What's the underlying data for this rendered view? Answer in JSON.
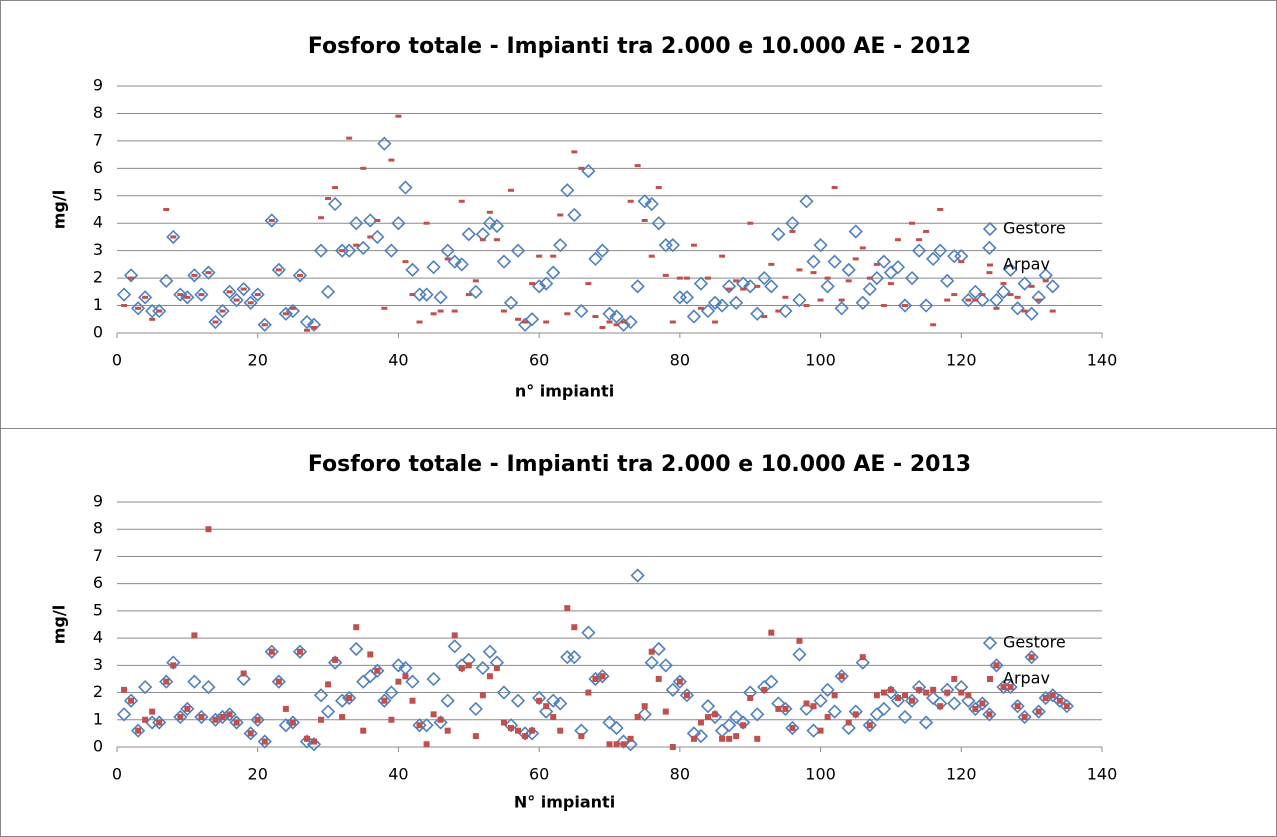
{
  "chart_data": [
    {
      "type": "scatter",
      "title": "Fosforo totale - Impianti tra 2.000 e 10.000 AE - 2012",
      "xlabel": "n° impianti",
      "ylabel": "mg/l",
      "x": [
        1,
        2,
        3,
        4,
        5,
        6,
        7,
        8,
        9,
        10,
        11,
        12,
        13,
        14,
        15,
        16,
        17,
        18,
        19,
        20,
        21,
        22,
        23,
        24,
        25,
        26,
        27,
        28,
        29,
        30,
        31,
        32,
        33,
        34,
        35,
        36,
        37,
        38,
        39,
        40,
        41,
        42,
        43,
        44,
        45,
        46,
        47,
        48,
        49,
        50,
        51,
        52,
        53,
        54,
        55,
        56,
        57,
        58,
        59,
        60,
        61,
        62,
        63,
        64,
        65,
        66,
        67,
        68,
        69,
        70,
        71,
        72,
        73,
        74,
        75,
        76,
        77,
        78,
        79,
        80,
        81,
        82,
        83,
        84,
        85,
        86,
        87,
        88,
        89,
        90,
        91,
        92,
        93,
        94,
        95,
        96,
        97,
        98,
        99,
        100,
        101,
        102,
        103,
        104,
        105,
        106,
        107,
        108,
        109,
        110,
        111,
        112,
        113,
        114,
        115,
        116,
        117,
        118,
        119,
        120,
        121,
        122,
        123,
        124,
        125,
        126,
        127,
        128,
        129,
        130,
        131,
        132,
        133
      ],
      "series": [
        {
          "name": "Gestore",
          "color": "#4f81bd",
          "marker": "diamond",
          "values": [
            1.4,
            2.1,
            0.9,
            1.3,
            0.8,
            0.8,
            1.9,
            3.5,
            1.4,
            1.3,
            2.1,
            1.4,
            2.2,
            0.4,
            0.8,
            1.5,
            1.2,
            1.6,
            1.1,
            1.4,
            0.3,
            4.1,
            2.3,
            0.7,
            0.8,
            2.1,
            0.4,
            0.3,
            3.0,
            1.5,
            4.7,
            3.0,
            3.0,
            4.0,
            3.1,
            4.1,
            3.5,
            6.9,
            3.0,
            4.0,
            5.3,
            2.3,
            1.4,
            1.4,
            2.4,
            1.3,
            3.0,
            2.6,
            2.5,
            3.6,
            1.5,
            3.6,
            4.0,
            3.9,
            2.6,
            1.1,
            3.0,
            0.3,
            0.5,
            1.7,
            1.8,
            2.2,
            3.2,
            5.2,
            4.3,
            0.8,
            5.9,
            2.7,
            3.0,
            0.7,
            0.6,
            0.3,
            0.4,
            1.7,
            4.8,
            4.7,
            4.0,
            3.2,
            3.2,
            1.3,
            1.3,
            0.6,
            1.8,
            0.8,
            1.1,
            1.0,
            1.7,
            1.1,
            1.8,
            1.7,
            0.7,
            2.0,
            1.7,
            3.6,
            0.8,
            4.0,
            1.2,
            4.8,
            2.6,
            3.2,
            1.7,
            2.6,
            0.9,
            2.3,
            3.7,
            1.1,
            1.6,
            2.0,
            2.6,
            2.2,
            2.4,
            1.0,
            2.0,
            3.0,
            1.0,
            2.7,
            3.0,
            1.9,
            2.8,
            2.8,
            1.2,
            1.5,
            1.2,
            3.1,
            1.2,
            1.5,
            2.3,
            0.9,
            1.8,
            0.7,
            1.3,
            2.1,
            1.7
          ]
        },
        {
          "name": "Arpav",
          "color": "#c0504d",
          "marker": "dash",
          "values": [
            1.0,
            2.0,
            0.9,
            1.3,
            0.5,
            0.8,
            4.5,
            3.5,
            1.4,
            1.3,
            2.1,
            1.4,
            2.2,
            0.4,
            0.8,
            1.5,
            1.2,
            1.6,
            1.1,
            1.4,
            0.3,
            4.1,
            2.3,
            0.7,
            0.9,
            2.1,
            0.1,
            0.2,
            4.2,
            4.9,
            5.3,
            3.0,
            7.1,
            3.2,
            6.0,
            3.5,
            4.1,
            0.9,
            6.3,
            7.9,
            2.6,
            1.4,
            0.4,
            4.0,
            0.7,
            0.8,
            2.7,
            0.8,
            4.8,
            1.4,
            1.9,
            3.4,
            4.4,
            3.4,
            0.8,
            5.2,
            0.5,
            0.4,
            1.8,
            2.8,
            0.4,
            2.8,
            4.3,
            0.7,
            6.6,
            6.0,
            1.8,
            0.6,
            0.2,
            0.4,
            0.3,
            0.4,
            4.8,
            6.1,
            4.1,
            2.8,
            5.3,
            2.1,
            0.4,
            2.0,
            2.0,
            3.2,
            0.9,
            2.0,
            0.4,
            2.8,
            1.6,
            1.9,
            1.6,
            4.0,
            1.7,
            0.6,
            2.5,
            0.8,
            1.3,
            3.7,
            2.3,
            1.0,
            2.2,
            1.2,
            2.0,
            5.3,
            1.2,
            1.9,
            2.7,
            3.1,
            2.0,
            2.5,
            1.0,
            1.8,
            3.4,
            1.0,
            4.0,
            3.4,
            3.7,
            0.3,
            4.5,
            1.2,
            1.4,
            2.6,
            1.2,
            1.2,
            1.4,
            2.2,
            0.9,
            1.8,
            1.4,
            1.3,
            0.8,
            1.7,
            1.2,
            1.9,
            0.8
          ]
        }
      ],
      "xlim": [
        0,
        140
      ],
      "ylim": [
        0,
        9
      ],
      "xticks": [
        0,
        20,
        40,
        60,
        80,
        100,
        120,
        140
      ],
      "yticks": [
        0,
        1,
        2,
        3,
        4,
        5,
        6,
        7,
        8,
        9
      ],
      "grid": true,
      "legend": "right"
    },
    {
      "type": "scatter",
      "title": "Fosforo totale - Impianti tra 2.000 e 10.000 AE - 2013",
      "xlabel": "N° impianti",
      "ylabel": "mg/l",
      "x": [
        1,
        2,
        3,
        4,
        5,
        6,
        7,
        8,
        9,
        10,
        11,
        12,
        13,
        14,
        15,
        16,
        17,
        18,
        19,
        20,
        21,
        22,
        23,
        24,
        25,
        26,
        27,
        28,
        29,
        30,
        31,
        32,
        33,
        34,
        35,
        36,
        37,
        38,
        39,
        40,
        41,
        42,
        43,
        44,
        45,
        46,
        47,
        48,
        49,
        50,
        51,
        52,
        53,
        54,
        55,
        56,
        57,
        58,
        59,
        60,
        61,
        62,
        63,
        64,
        65,
        66,
        67,
        68,
        69,
        70,
        71,
        72,
        73,
        74,
        75,
        76,
        77,
        78,
        79,
        80,
        81,
        82,
        83,
        84,
        85,
        86,
        87,
        88,
        89,
        90,
        91,
        92,
        93,
        94,
        95,
        96,
        97,
        98,
        99,
        100,
        101,
        102,
        103,
        104,
        105,
        106,
        107,
        108,
        109,
        110,
        111,
        112,
        113,
        114,
        115,
        116,
        117,
        118,
        119,
        120,
        121,
        122,
        123,
        124,
        125,
        126,
        127,
        128,
        129,
        130,
        131,
        132,
        133,
        134,
        135
      ],
      "series": [
        {
          "name": "Gestore",
          "color": "#4f81bd",
          "marker": "diamond",
          "values": [
            1.2,
            1.7,
            0.6,
            2.2,
            0.9,
            0.9,
            2.4,
            3.1,
            1.1,
            1.4,
            2.4,
            1.1,
            2.2,
            1.0,
            1.1,
            1.2,
            0.9,
            2.5,
            0.5,
            1.0,
            0.2,
            3.5,
            2.4,
            0.8,
            0.9,
            3.5,
            0.2,
            0.1,
            1.9,
            1.3,
            3.1,
            1.7,
            1.8,
            3.6,
            2.4,
            2.6,
            2.8,
            1.7,
            2.0,
            3.0,
            2.9,
            2.4,
            0.8,
            0.8,
            2.5,
            0.9,
            1.7,
            3.7,
            3.0,
            3.2,
            1.4,
            2.9,
            3.5,
            3.1,
            2.0,
            0.8,
            1.7,
            0.5,
            0.5,
            1.8,
            1.3,
            1.7,
            1.6,
            3.3,
            3.3,
            0.6,
            4.2,
            2.5,
            2.6,
            0.9,
            0.7,
            0.2,
            0.1,
            6.3,
            1.2,
            3.1,
            3.6,
            3.0,
            2.1,
            2.4,
            1.9,
            0.5,
            0.4,
            1.5,
            1.1,
            0.6,
            0.8,
            1.1,
            0.9,
            2.0,
            1.2,
            2.2,
            2.4,
            1.6,
            1.4,
            0.7,
            3.4,
            1.4,
            0.6,
            1.7,
            2.1,
            1.3,
            2.6,
            0.7,
            1.3,
            3.1,
            0.8,
            1.2,
            1.4,
            2.0,
            1.7,
            1.1,
            1.7,
            2.2,
            0.9,
            1.8,
            1.6,
            2.1,
            1.6,
            2.2,
            1.7,
            1.4,
            1.6,
            1.2,
            3.0,
            2.2,
            2.2,
            1.5,
            1.1,
            3.3,
            1.3,
            1.8,
            1.9,
            1.7,
            1.5
          ]
        },
        {
          "name": "Arpav",
          "color": "#c0504d",
          "marker": "square",
          "values": [
            2.1,
            1.7,
            0.6,
            1.0,
            1.3,
            0.9,
            2.4,
            3.0,
            1.1,
            1.4,
            4.1,
            1.1,
            8.0,
            1.0,
            1.1,
            1.2,
            0.9,
            2.7,
            0.5,
            1.0,
            0.2,
            3.5,
            2.4,
            1.4,
            0.9,
            3.5,
            0.3,
            0.2,
            1.0,
            2.3,
            3.2,
            1.1,
            1.8,
            4.4,
            0.6,
            3.4,
            2.8,
            1.7,
            1.0,
            2.4,
            2.6,
            1.7,
            0.8,
            0.1,
            1.2,
            1.0,
            0.6,
            4.1,
            2.9,
            3.0,
            0.4,
            1.9,
            2.6,
            2.9,
            0.9,
            0.7,
            0.6,
            0.4,
            0.6,
            1.7,
            1.5,
            1.1,
            0.6,
            5.1,
            4.4,
            0.4,
            2.0,
            2.5,
            2.6,
            0.1,
            0.1,
            0.1,
            0.3,
            1.1,
            1.5,
            3.5,
            2.5,
            1.3,
            0.0,
            2.4,
            1.9,
            0.3,
            0.9,
            1.1,
            1.2,
            0.3,
            0.3,
            0.4,
            0.8,
            1.8,
            0.3,
            2.1,
            4.2,
            1.4,
            1.4,
            0.7,
            3.9,
            1.6,
            1.5,
            0.6,
            1.1,
            1.9,
            2.6,
            0.9,
            1.2,
            3.3,
            0.8,
            1.9,
            2.0,
            2.1,
            1.8,
            1.9,
            1.7,
            2.1,
            2.0,
            2.1,
            1.5,
            2.0,
            2.5,
            2.0,
            1.9,
            1.4,
            1.6,
            1.2,
            3.0,
            2.2,
            2.2,
            1.5,
            1.1,
            3.3,
            1.3,
            1.8,
            1.9,
            1.7,
            1.5
          ]
        }
      ],
      "xlim": [
        0,
        140
      ],
      "ylim": [
        0,
        9
      ],
      "xticks": [
        0,
        20,
        40,
        60,
        80,
        100,
        120,
        140
      ],
      "yticks": [
        0,
        1,
        2,
        3,
        4,
        5,
        6,
        7,
        8,
        9
      ],
      "grid": true,
      "legend": "right"
    }
  ]
}
